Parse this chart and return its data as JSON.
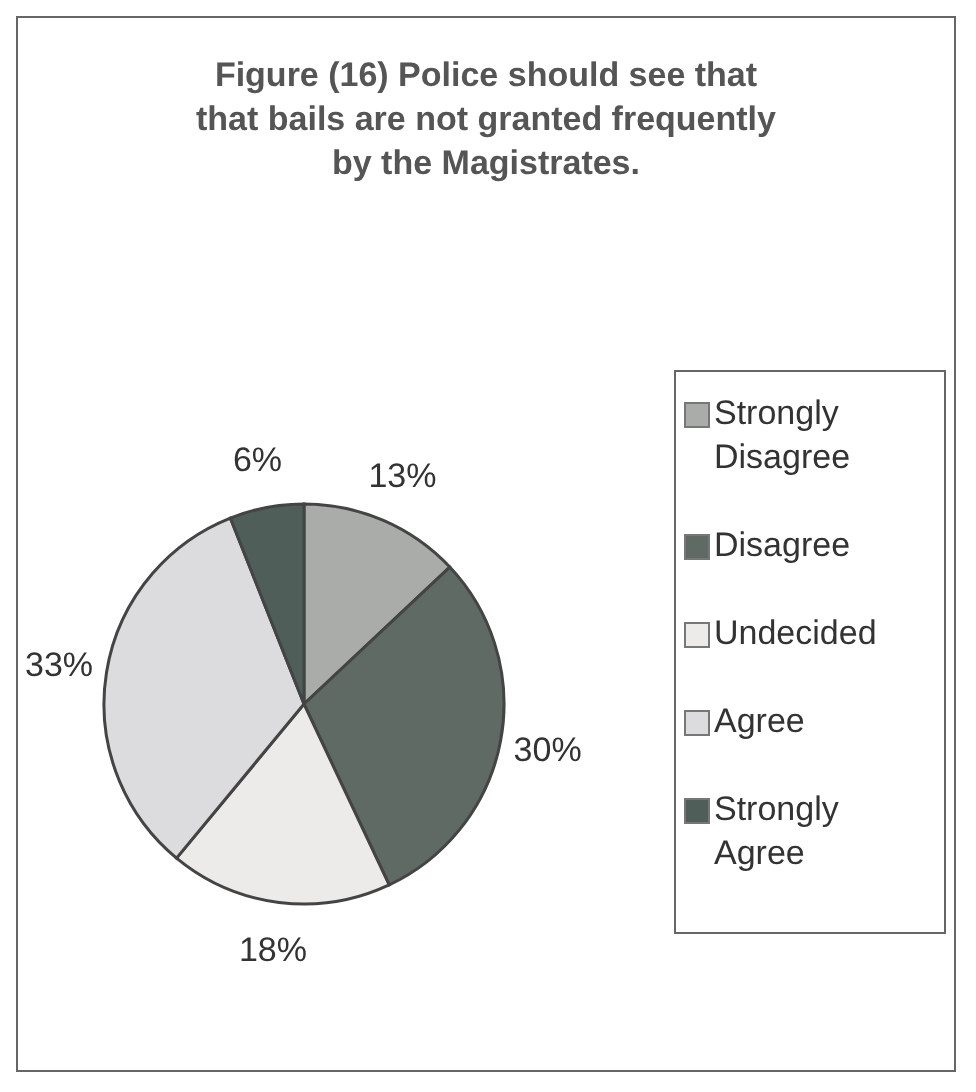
{
  "chart_data": {
    "type": "pie",
    "title": "Figure (16) Police should see that that bails are not granted frequently by the Magistrates.",
    "categories": [
      "Strongly Disagree",
      "Disagree",
      "Undecided",
      "Agree",
      "Strongly Agree"
    ],
    "values": [
      13,
      30,
      18,
      33,
      6
    ],
    "value_labels": [
      "13%",
      "30%",
      "18%",
      "33%",
      "6%"
    ],
    "colors": [
      "#a9aca9",
      "#5f6a64",
      "#ecebea",
      "#dcdcdf",
      "#4f5e58"
    ],
    "legend": "right"
  }
}
